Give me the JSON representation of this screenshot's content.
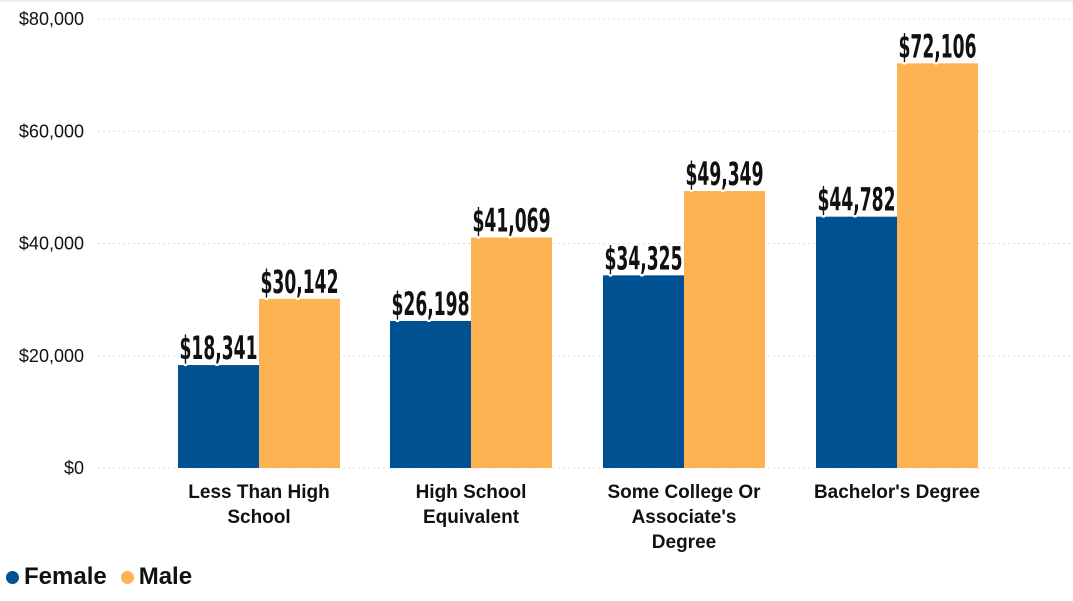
{
  "chart_data": {
    "type": "bar",
    "categories": [
      [
        "Less Than High",
        "School"
      ],
      [
        "High School",
        "Equivalent"
      ],
      [
        "Some College Or",
        "Associate's",
        "Degree"
      ],
      [
        "Bachelor's Degree"
      ]
    ],
    "series": [
      {
        "name": "Female",
        "color": "#005192",
        "values": [
          18341,
          26198,
          34325,
          44782
        ],
        "labels": [
          "$18,341",
          "$26,198",
          "$34,325",
          "$44,782"
        ]
      },
      {
        "name": "Male",
        "color": "#FDB351",
        "values": [
          30142,
          41069,
          49349,
          72106
        ],
        "labels": [
          "$30,142",
          "$41,069",
          "$49,349",
          "$72,106"
        ]
      }
    ],
    "ylim": [
      0,
      80000
    ],
    "yticks": [
      0,
      20000,
      40000,
      60000,
      80000
    ],
    "ytick_labels": [
      "$0",
      "$20,000",
      "$40,000",
      "$60,000",
      "$80,000"
    ],
    "grid": true,
    "legend_position": "bottom-left",
    "title": "",
    "xlabel": "",
    "ylabel": ""
  }
}
